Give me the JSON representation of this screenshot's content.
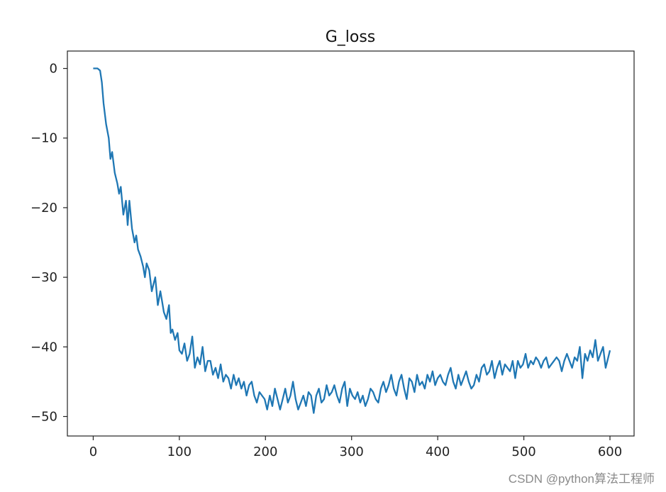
{
  "chart_data": {
    "type": "line",
    "title": "G_loss",
    "xlabel": "",
    "ylabel": "",
    "xlim": [
      -30,
      628
    ],
    "ylim": [
      -52.8,
      2.5
    ],
    "xticks": [
      0,
      100,
      200,
      300,
      400,
      500,
      600
    ],
    "yticks": [
      0,
      -10,
      -20,
      -30,
      -40,
      -50
    ],
    "xtick_labels": [
      "0",
      "100",
      "200",
      "300",
      "400",
      "500",
      "600"
    ],
    "ytick_labels": [
      "0",
      "−10",
      "−20",
      "−30",
      "−40",
      "−50"
    ],
    "grid": false,
    "legend": "none",
    "line_color": "#1f77b4",
    "series": [
      {
        "x": [
          0,
          5,
          8,
          10,
          12,
          15,
          18,
          20,
          22,
          25,
          28,
          30,
          32,
          35,
          38,
          40,
          42,
          45,
          48,
          50,
          52,
          55,
          58,
          60,
          62,
          65,
          68,
          70,
          72,
          75,
          78,
          80,
          82,
          85,
          88,
          90,
          92,
          95,
          98,
          100,
          103,
          106,
          109,
          112,
          115,
          118,
          121,
          124,
          127,
          130,
          133,
          136,
          139,
          142,
          145,
          148,
          151,
          154,
          157,
          160,
          163,
          166,
          169,
          172,
          175,
          178,
          181,
          184,
          187,
          190,
          193,
          196,
          199,
          202,
          205,
          208,
          211,
          214,
          217,
          220,
          223,
          226,
          229,
          232,
          235,
          238,
          241,
          244,
          247,
          250,
          253,
          256,
          259,
          262,
          265,
          268,
          271,
          274,
          277,
          280,
          283,
          286,
          289,
          292,
          295,
          298,
          301,
          304,
          307,
          310,
          313,
          316,
          319,
          322,
          325,
          328,
          331,
          334,
          337,
          340,
          343,
          346,
          349,
          352,
          355,
          358,
          361,
          364,
          367,
          370,
          373,
          376,
          379,
          382,
          385,
          388,
          391,
          394,
          397,
          400,
          403,
          406,
          409,
          412,
          415,
          418,
          421,
          424,
          427,
          430,
          433,
          436,
          439,
          442,
          445,
          448,
          451,
          454,
          457,
          460,
          463,
          466,
          469,
          472,
          475,
          478,
          481,
          484,
          487,
          490,
          493,
          496,
          499,
          502,
          505,
          508,
          511,
          514,
          517,
          520,
          523,
          526,
          529,
          532,
          535,
          538,
          541,
          544,
          547,
          550,
          553,
          556,
          559,
          562,
          565,
          568,
          571,
          574,
          577,
          580,
          583,
          586,
          589,
          592,
          595,
          598,
          600
        ],
        "y": [
          0,
          0,
          -0.3,
          -2,
          -5,
          -8,
          -10,
          -13,
          -12,
          -15,
          -16.5,
          -18,
          -17,
          -21,
          -19,
          -22.5,
          -19,
          -23,
          -25,
          -24,
          -26,
          -27,
          -28.5,
          -30,
          -28,
          -29,
          -32,
          -31,
          -30,
          -34,
          -32,
          -33.5,
          -35,
          -36,
          -34,
          -38,
          -37.5,
          -39,
          -38,
          -40.5,
          -41,
          -39.5,
          -42,
          -41,
          -38.5,
          -43,
          -41.5,
          -42.5,
          -40,
          -43.5,
          -42,
          -42,
          -44,
          -43,
          -44.5,
          -42.5,
          -45,
          -44,
          -44.5,
          -46,
          -44,
          -45.5,
          -44.5,
          -46,
          -45,
          -47,
          -45.5,
          -45,
          -47,
          -48,
          -46.5,
          -47,
          -47.5,
          -49,
          -47,
          -48.5,
          -46,
          -47.5,
          -49,
          -47.5,
          -46,
          -48,
          -47,
          -45,
          -47.5,
          -49,
          -48,
          -47,
          -48.5,
          -46.5,
          -47,
          -49.5,
          -47,
          -46,
          -48,
          -47.5,
          -45.5,
          -47,
          -46.5,
          -45.5,
          -47,
          -48,
          -46,
          -45,
          -48.5,
          -46,
          -47,
          -47.5,
          -46.5,
          -48,
          -47,
          -48.5,
          -47.5,
          -46,
          -46.5,
          -47.5,
          -48,
          -46,
          -45,
          -46.5,
          -45.5,
          -44,
          -46,
          -47,
          -45,
          -44,
          -46,
          -47.5,
          -44.5,
          -45,
          -46.5,
          -44,
          -45.5,
          -45,
          -46,
          -44,
          -45,
          -43.5,
          -45.5,
          -44.5,
          -44,
          -45,
          -45.5,
          -44,
          -43,
          -45,
          -46,
          -44,
          -45.5,
          -44.5,
          -43.5,
          -45,
          -46,
          -45.5,
          -44,
          -45,
          -43,
          -42.5,
          -44,
          -43.5,
          -42,
          -44.5,
          -43,
          -42,
          -44,
          -42.5,
          -43,
          -43.5,
          -42,
          -44.5,
          -42,
          -43,
          -42.5,
          -41,
          -43,
          -42,
          -42.5,
          -41.5,
          -42,
          -43,
          -42,
          -41.5,
          -43,
          -42.5,
          -42,
          -41.5,
          -42,
          -43.5,
          -42,
          -41,
          -42,
          -43,
          -41.5,
          -42,
          -40,
          -44.5,
          -41,
          -42,
          -40.5,
          -41.5,
          -39,
          -42,
          -41,
          -40,
          -43,
          -41.5,
          -40.5
        ]
      }
    ]
  },
  "watermark": "CSDN @python算法工程师"
}
